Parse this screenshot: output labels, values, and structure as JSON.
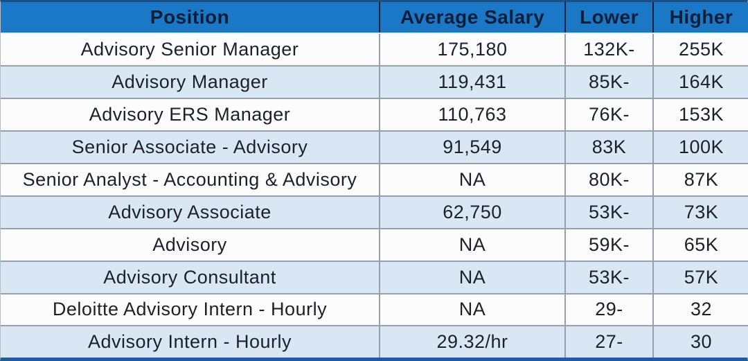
{
  "colors": {
    "header_bg": "#1b78c6",
    "header_text": "#0d1e3a",
    "row_bg": "#fcfcfd",
    "row_alt_bg": "#d9e7f4",
    "grid_line": "#94a0ae",
    "body_text": "#1b202c",
    "top_border": "#1a4e85",
    "bottom_border": "#1e5c9c"
  },
  "table": {
    "columns": [
      {
        "key": "position",
        "label": "Position"
      },
      {
        "key": "average_salary",
        "label": "Average Salary"
      },
      {
        "key": "lower",
        "label": "Lower"
      },
      {
        "key": "higher",
        "label": "Higher"
      }
    ],
    "rows": [
      {
        "position": "Advisory Senior Manager",
        "average_salary": "175,180",
        "lower": "132K-",
        "higher": "255K"
      },
      {
        "position": "Advisory Manager",
        "average_salary": "119,431",
        "lower": "85K-",
        "higher": "164K"
      },
      {
        "position": "Advisory ERS Manager",
        "average_salary": "110,763",
        "lower": "76K-",
        "higher": "153K"
      },
      {
        "position": "Senior Associate - Advisory",
        "average_salary": "91,549",
        "lower": "83K",
        "higher": "100K"
      },
      {
        "position": "Senior Analyst - Accounting & Advisory",
        "average_salary": "NA",
        "lower": "80K-",
        "higher": "87K"
      },
      {
        "position": "Advisory Associate",
        "average_salary": "62,750",
        "lower": "53K-",
        "higher": "73K"
      },
      {
        "position": "Advisory",
        "average_salary": "NA",
        "lower": "59K-",
        "higher": "65K"
      },
      {
        "position": "Advisory Consultant",
        "average_salary": "NA",
        "lower": "53K-",
        "higher": "57K"
      },
      {
        "position": "Deloitte Advisory Intern - Hourly",
        "average_salary": "NA",
        "lower": "29-",
        "higher": "32"
      },
      {
        "position": "Advisory Intern - Hourly",
        "average_salary": "29.32/hr",
        "lower": "27-",
        "higher": "30"
      }
    ]
  },
  "chart_data": {
    "type": "table",
    "title": "",
    "columns": [
      "Position",
      "Average Salary",
      "Lower",
      "Higher"
    ],
    "rows": [
      [
        "Advisory Senior Manager",
        "175,180",
        "132K-",
        "255K"
      ],
      [
        "Advisory Manager",
        "119,431",
        "85K-",
        "164K"
      ],
      [
        "Advisory ERS Manager",
        "110,763",
        "76K-",
        "153K"
      ],
      [
        "Senior Associate - Advisory",
        "91,549",
        "83K",
        "100K"
      ],
      [
        "Senior Analyst - Accounting & Advisory",
        "NA",
        "80K-",
        "87K"
      ],
      [
        "Advisory Associate",
        "62,750",
        "53K-",
        "73K"
      ],
      [
        "Advisory",
        "NA",
        "59K-",
        "65K"
      ],
      [
        "Advisory Consultant",
        "NA",
        "53K-",
        "57K"
      ],
      [
        "Deloitte Advisory Intern - Hourly",
        "NA",
        "29-",
        "32"
      ],
      [
        "Advisory Intern - Hourly",
        "29.32/hr",
        "27-",
        "30"
      ]
    ],
    "numeric_values": {
      "average_salary_usd": [
        175180,
        119431,
        110763,
        91549,
        null,
        62750,
        null,
        null,
        null,
        null
      ],
      "average_hourly_usd": [
        null,
        null,
        null,
        null,
        null,
        null,
        null,
        null,
        null,
        29.32
      ],
      "lower_bound": [
        132000,
        85000,
        76000,
        83000,
        80000,
        53000,
        59000,
        53000,
        29,
        27
      ],
      "higher_bound": [
        255000,
        164000,
        153000,
        100000,
        87000,
        73000,
        65000,
        57000,
        32,
        30
      ]
    },
    "layout": {
      "grid": true,
      "zebra_striping": true,
      "header_position": "top"
    }
  }
}
